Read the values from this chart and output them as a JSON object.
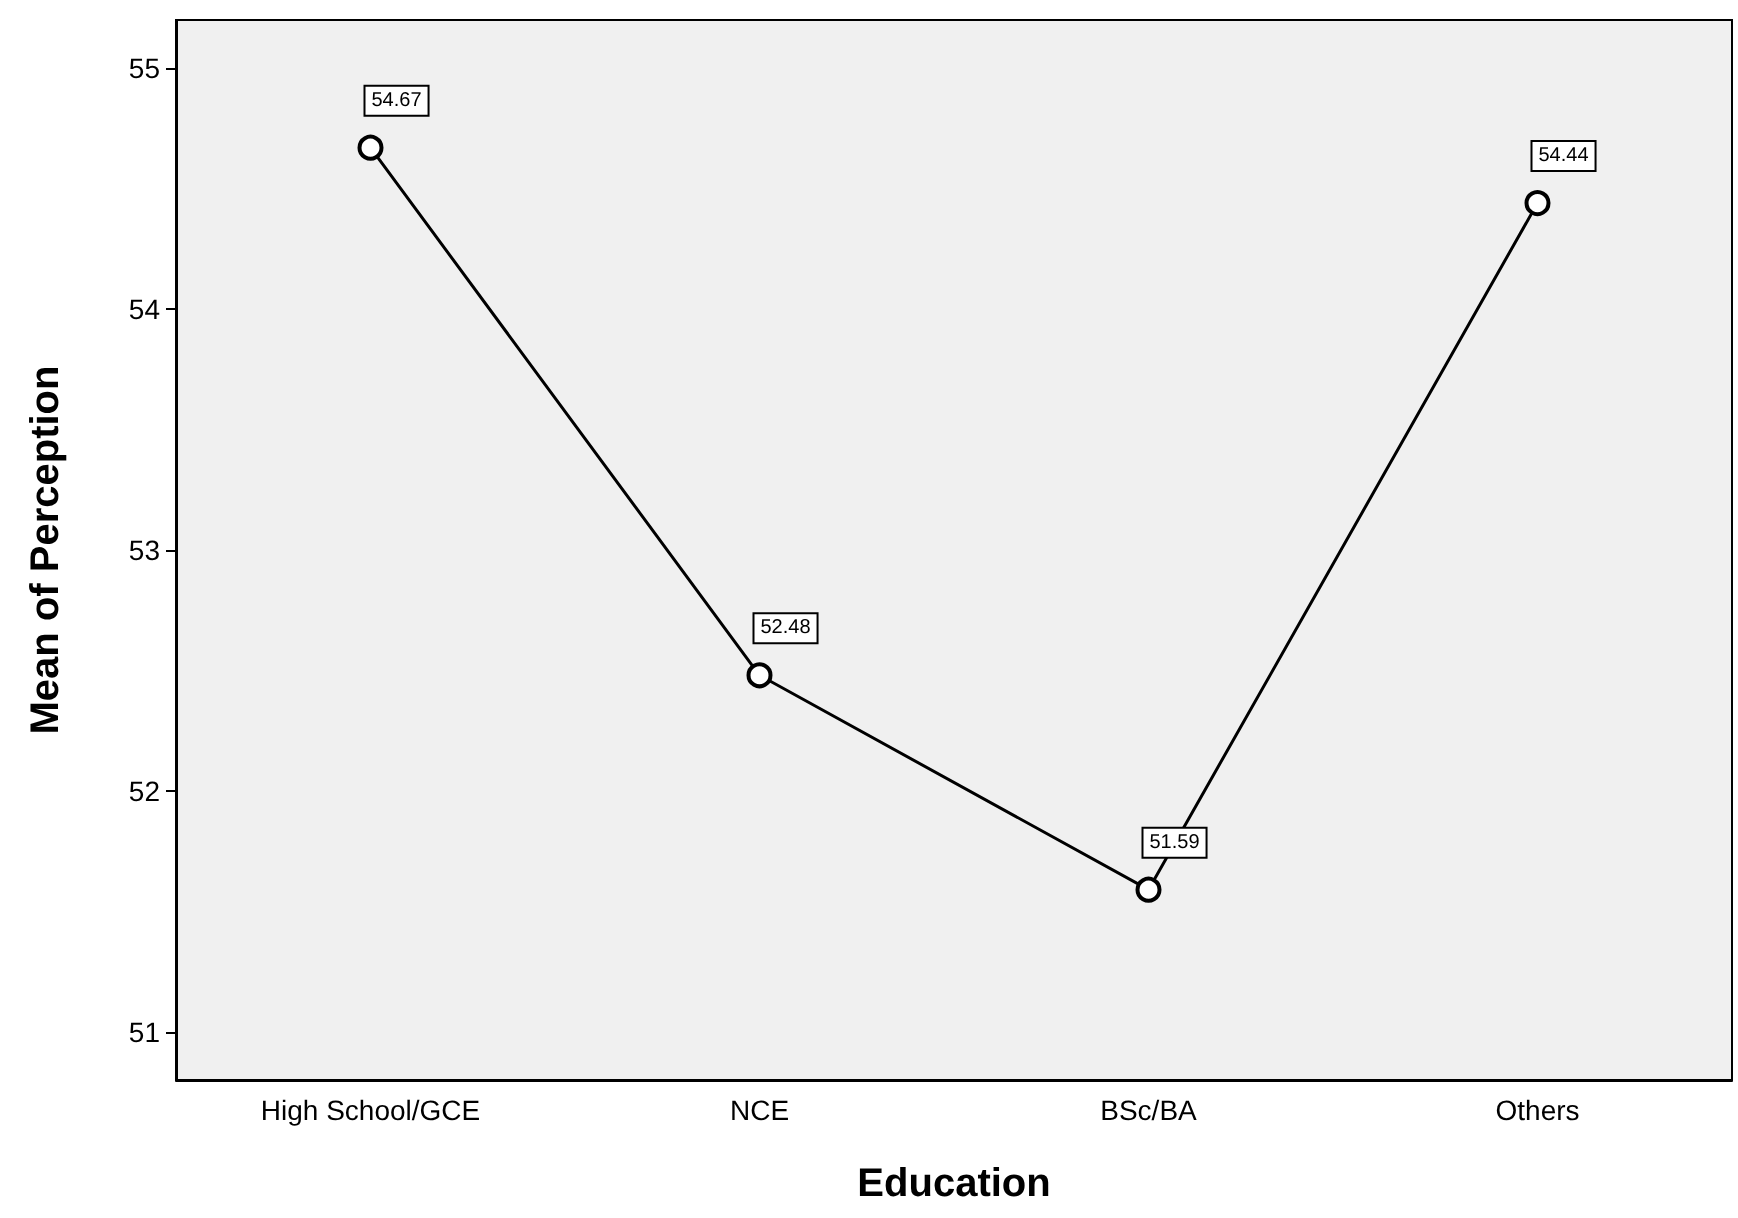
{
  "chart_data": {
    "type": "line",
    "xlabel": "Education",
    "ylabel": "Mean of Perception",
    "categories": [
      "High School/GCE",
      "NCE",
      "BSc/BA",
      "Others"
    ],
    "series": [
      {
        "color": "#000000",
        "values": [
          54.67,
          52.48,
          51.59,
          54.44
        ]
      }
    ],
    "ylim": [
      50.8,
      55.2
    ],
    "yticks": [
      51,
      52,
      53,
      54,
      55
    ],
    "grid": false,
    "marker": "circle",
    "data_labels": true
  }
}
